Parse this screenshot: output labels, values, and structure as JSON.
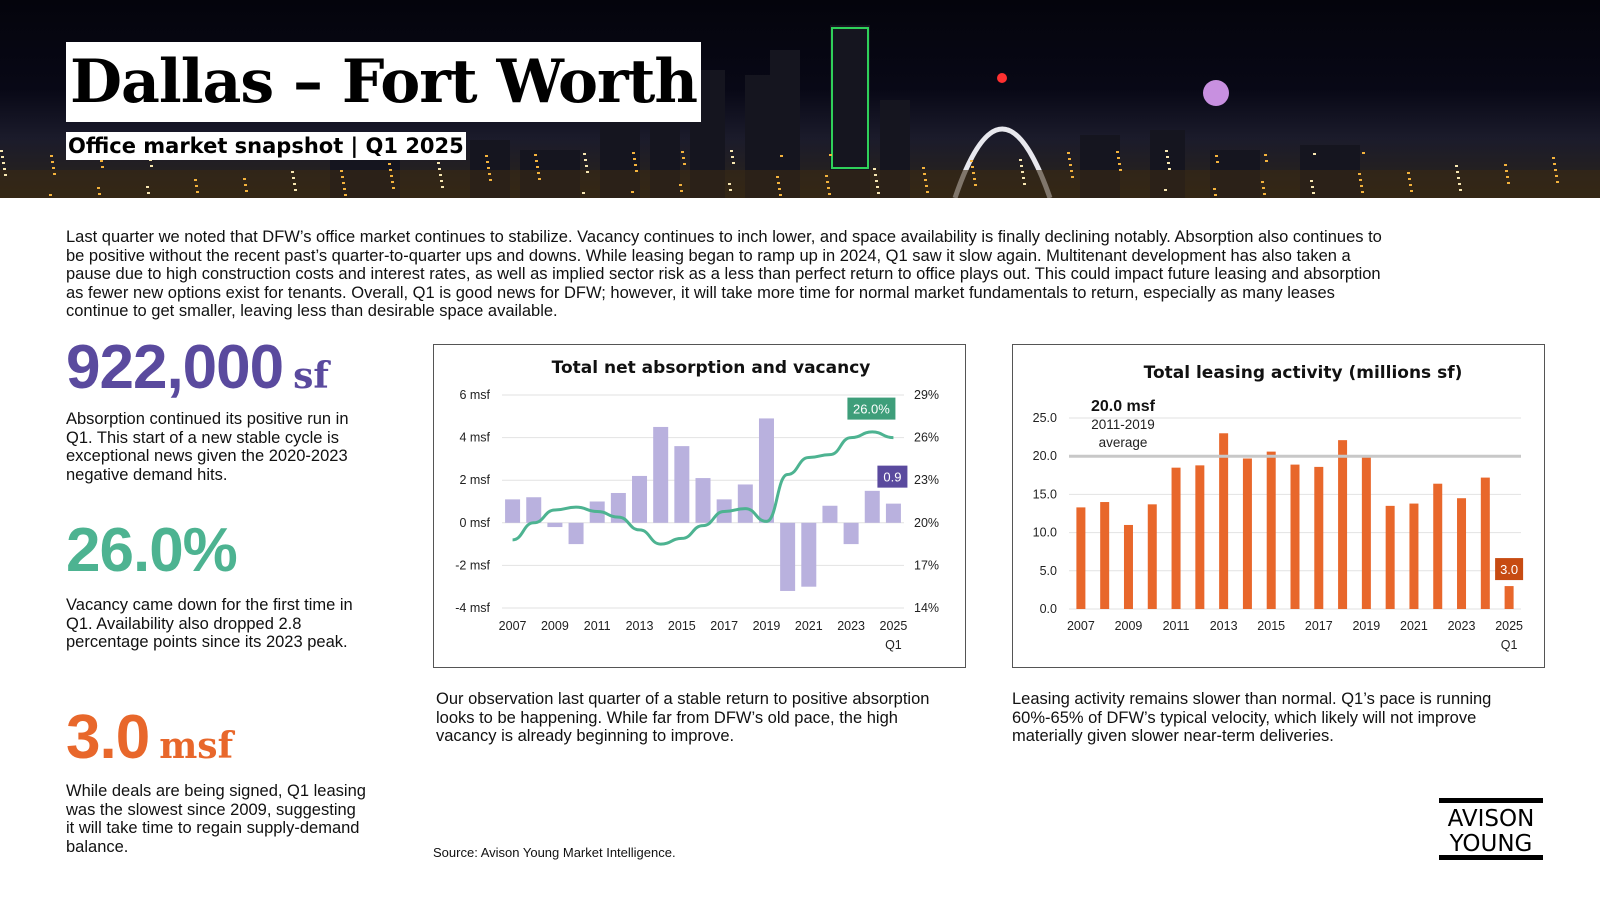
{
  "header": {
    "title": "Dallas – Fort Worth",
    "subtitle": "Office market snapshot | Q1 2025"
  },
  "intro": "Last quarter we noted that DFW’s office market continues to stabilize. Vacancy continues to inch lower, and space availability is finally declining notably. Absorption also continues to be positive without the recent past’s quarter-to-quarter ups and downs. While leasing began to ramp up in 2024, Q1 saw it slow again. Multitenant development has also taken a pause due to high construction costs and interest rates, as well as implied sector risk as a less than perfect return to office plays out. This could impact future leasing and absorption as fewer new options exist for tenants. Overall, Q1 is good news for DFW; however, it will take more time for normal market fundamentals to return, especially as many leases continue to get smaller, leaving less than desirable space available.",
  "stats": [
    {
      "value": "922,000",
      "unit": "sf",
      "color": "#5a4a9e",
      "text": "Absorption continued its positive run in Q1. This start of a new stable cycle is exceptional news given the 2020-2023 negative demand hits."
    },
    {
      "value": "26.0%",
      "unit": "",
      "color": "#4db391",
      "text": "Vacancy came down for the first time in Q1. Availability also dropped 2.8 percentage points since its 2023 peak."
    },
    {
      "value": "3.0",
      "unit": "msf",
      "color": "#e8672b",
      "text": "While deals are being signed, Q1 leasing was the slowest since 2009, suggesting it will take time to regain supply-demand balance."
    }
  ],
  "captions": {
    "chart1": "Our observation last quarter of a stable return to positive absorption looks to be happening. While far from DFW’s old pace, the high vacancy is already beginning to improve.",
    "chart2": "Leasing activity remains slower than normal. Q1’s pace is running 60%-65% of DFW’s typical velocity, which likely will not improve materially given slower near-term deliveries."
  },
  "source": "Source: Avison Young Market Intelligence.",
  "logo": {
    "line1": "AVISON",
    "line2": "YOUNG"
  },
  "colors": {
    "purple_bar": "#b9b1de",
    "green_line": "#4db391",
    "orange_bar": "#e8672b",
    "label_orange": "#c74b12",
    "label_purple": "#5a4a9e",
    "label_green": "#3e9e7a"
  },
  "chart_data": [
    {
      "type": "bar",
      "title": "Total net absorption and vacancy",
      "x_tick_labels": [
        "2007",
        "2009",
        "2011",
        "2013",
        "2015",
        "2017",
        "2019",
        "2021",
        "2023",
        "2025"
      ],
      "x_tick_sublabel": "Q1",
      "y_left_ticks": [
        "6 msf",
        "4 msf",
        "2 msf",
        "0 msf",
        "-2 msf",
        "-4 msf"
      ],
      "y_left_range": [
        -4,
        6
      ],
      "y_right_ticks": [
        "29%",
        "26%",
        "23%",
        "20%",
        "17%",
        "14%"
      ],
      "y_right_range": [
        14,
        29
      ],
      "categories": [
        "2007",
        "2008",
        "2009",
        "2010",
        "2011",
        "2012",
        "2013",
        "2014",
        "2015",
        "2016",
        "2017",
        "2018",
        "2019",
        "2020",
        "2021",
        "2022",
        "2023",
        "2024",
        "2025 Q1"
      ],
      "series": [
        {
          "type": "bar",
          "axis": "left",
          "unit": "msf",
          "values": [
            1.1,
            1.2,
            -0.2,
            -1.0,
            1.0,
            1.4,
            2.2,
            4.5,
            3.6,
            2.1,
            1.1,
            1.8,
            4.9,
            -3.2,
            -3.0,
            0.8,
            -1.0,
            1.5,
            0.9
          ]
        },
        {
          "type": "line",
          "axis": "right",
          "unit": "%",
          "values": [
            18.8,
            20.0,
            20.9,
            21.1,
            20.8,
            20.4,
            19.5,
            18.5,
            18.9,
            19.8,
            20.8,
            21.0,
            20.1,
            23.4,
            24.6,
            24.8,
            26.0,
            26.4,
            26.0
          ]
        }
      ],
      "callouts": [
        {
          "text": "26.0%",
          "series": "line",
          "category": "2025 Q1"
        },
        {
          "text": "0.9",
          "series": "bar",
          "category": "2025 Q1"
        }
      ]
    },
    {
      "type": "bar",
      "title": "Total leasing activity (millions sf)",
      "x_tick_labels": [
        "2007",
        "2009",
        "2011",
        "2013",
        "2015",
        "2017",
        "2019",
        "2021",
        "2023",
        "2025"
      ],
      "x_tick_sublabel": "Q1",
      "y_ticks": [
        "25.0",
        "20.0",
        "15.0",
        "10.0",
        "5.0",
        "0.0"
      ],
      "ylim": [
        0,
        25
      ],
      "categories": [
        "2007",
        "2008",
        "2009",
        "2010",
        "2011",
        "2012",
        "2013",
        "2014",
        "2015",
        "2016",
        "2017",
        "2018",
        "2019",
        "2020",
        "2021",
        "2022",
        "2023",
        "2024",
        "2025 Q1"
      ],
      "values": [
        13.3,
        14.0,
        11.0,
        13.7,
        18.5,
        18.8,
        23.0,
        19.7,
        20.6,
        18.9,
        18.6,
        22.1,
        19.9,
        13.5,
        13.8,
        16.4,
        14.5,
        17.2,
        3.0
      ],
      "reference_line": {
        "value": 20.0,
        "label": "20.0 msf",
        "sublabel1": "2011-2019",
        "sublabel2": "average"
      },
      "callouts": [
        {
          "text": "3.0",
          "category": "2025 Q1"
        }
      ]
    }
  ]
}
